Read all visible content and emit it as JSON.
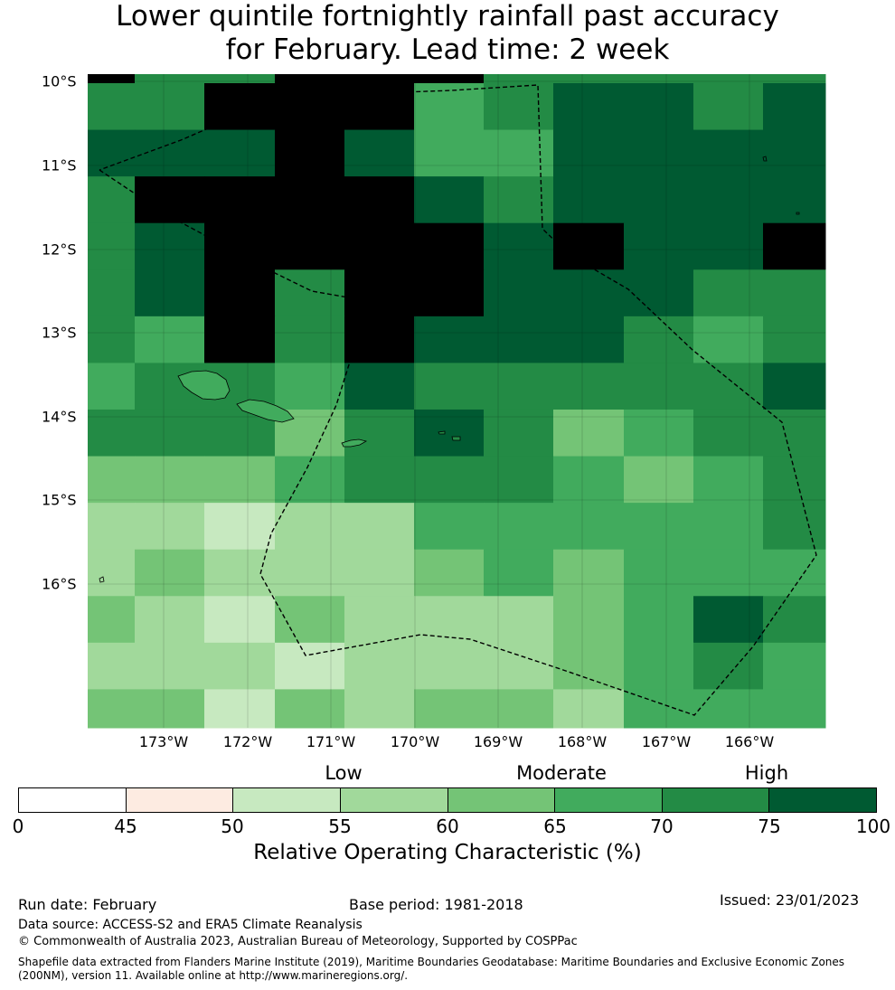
{
  "title": {
    "line1": "Lower quintile fortnightly rainfall past accuracy",
    "line2": "for February. Lead time: 2 week"
  },
  "map": {
    "lat_labels": [
      "10°S",
      "11°S",
      "12°S",
      "13°S",
      "14°S",
      "15°S",
      "16°S"
    ],
    "lon_labels": [
      "173°W",
      "172°W",
      "171°W",
      "170°W",
      "169°W",
      "168°W",
      "167°W",
      "166°W"
    ],
    "grid_bins": [
      [
        8,
        6,
        6,
        8,
        8,
        8,
        6,
        6,
        6,
        6,
        6
      ],
      [
        6,
        6,
        8,
        8,
        8,
        5,
        6,
        7,
        7,
        6,
        7
      ],
      [
        7,
        7,
        7,
        8,
        7,
        5,
        5,
        7,
        7,
        7,
        7
      ],
      [
        6,
        8,
        8,
        8,
        8,
        7,
        6,
        7,
        7,
        7,
        7
      ],
      [
        6,
        7,
        8,
        8,
        8,
        8,
        7,
        8,
        7,
        7,
        8
      ],
      [
        6,
        7,
        8,
        6,
        8,
        8,
        7,
        7,
        7,
        6,
        6
      ],
      [
        6,
        5,
        8,
        6,
        8,
        7,
        7,
        7,
        6,
        5,
        6
      ],
      [
        5,
        6,
        6,
        5,
        7,
        6,
        6,
        6,
        6,
        6,
        7
      ],
      [
        6,
        6,
        6,
        4,
        6,
        7,
        6,
        4,
        5,
        6,
        6
      ],
      [
        4,
        4,
        4,
        5,
        6,
        6,
        6,
        5,
        4,
        5,
        6
      ],
      [
        3,
        3,
        2,
        3,
        3,
        5,
        5,
        5,
        5,
        5,
        6
      ],
      [
        3,
        4,
        3,
        3,
        3,
        4,
        5,
        4,
        5,
        5,
        5
      ],
      [
        4,
        3,
        2,
        4,
        3,
        3,
        3,
        4,
        5,
        7,
        6
      ],
      [
        3,
        3,
        3,
        2,
        3,
        3,
        3,
        4,
        5,
        6,
        5
      ],
      [
        4,
        4,
        2,
        4,
        3,
        4,
        4,
        3,
        5,
        5,
        5
      ]
    ]
  },
  "colorbar": {
    "categories": {
      "low": "Low",
      "moderate": "Moderate",
      "high": "High"
    },
    "colors": [
      "#ffffff",
      "#fdebe1",
      "#c7e9c0",
      "#a1d99b",
      "#74c476",
      "#41ab5d",
      "#238b45",
      "#005a32"
    ],
    "ticks": [
      "0",
      "45",
      "50",
      "55",
      "60",
      "65",
      "70",
      "75",
      "100"
    ],
    "label": "Relative Operating Characteristic (%)"
  },
  "footer": {
    "run_date": "Run date: February",
    "base_period": "Base period: 1981-2018",
    "issued": "Issued: 23/01/2023",
    "data_source": "Data source: ACCESS-S2 and ERA5 Climate Reanalysis",
    "copyright": "© Commonwealth of Australia 2023, Australian Bureau of Meteorology, Supported by COSPPac",
    "shapefile": "Shapefile data extracted from Flanders Marine Institute (2019), Maritime Boundaries Geodatabase: Maritime Boundaries and Exclusive Economic Zones (200NM), version 11. Available online at http://www.marineregions.org/."
  }
}
